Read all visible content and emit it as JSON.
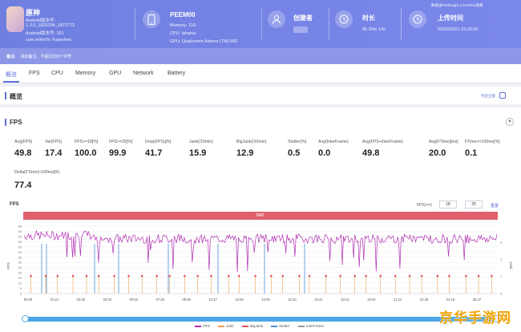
{
  "app": {
    "name": "原神",
    "lines": [
      "Android版本号:",
      "1.3.0_1825294_1872772",
      "Android版本号: 151",
      "com.miHoYo.Yuanshen"
    ]
  },
  "device": {
    "name": "PEEM00",
    "memory": "Memory: 11G",
    "cpu": "CPU: lahaina",
    "gpu": "GPU: Qualcomm Adreno (TM) 660"
  },
  "creator": {
    "title": "创建者"
  },
  "duration": {
    "title": "时长",
    "value": "0h 30m 14s"
  },
  "upload": {
    "title": "上传时间",
    "value": "03/03/2021 15:33:02",
    "top_note": "数据由PerfDog(5.1.210204)收集"
  },
  "note_bar": {
    "label": "备注:",
    "text": "添加备注，不超过255个字符"
  },
  "tabs": [
    "概览",
    "FPS",
    "CPU",
    "Memory",
    "GPU",
    "Network",
    "Battery"
  ],
  "overview": {
    "title": "概览",
    "export": "导出全部"
  },
  "fps_section": {
    "title": "FPS",
    "collapse": "▾",
    "metrics": [
      {
        "label": "Avg(FPS)",
        "value": "49.8"
      },
      {
        "label": "Var(FPS)",
        "value": "17.4"
      },
      {
        "label": "FPS>=18[%]",
        "value": "100.0"
      },
      {
        "label": "FPS>=25[%]",
        "value": "99.9"
      },
      {
        "label": "Drop(FPS)[/h]",
        "value": "41.7"
      },
      {
        "label": "Jank(/10min)",
        "value": "15.9"
      },
      {
        "label": "BigJank(/10min)",
        "value": "12.9"
      },
      {
        "label": "Stutter(%)",
        "value": "0.5"
      },
      {
        "label": "Avg(InterFrame)",
        "value": "0.0"
      },
      {
        "label": "Avg(FPS+InterFrame)",
        "value": "49.8"
      },
      {
        "label": "Avg(FTime)[ms]",
        "value": "20.0"
      },
      {
        "label": "FTime>=100ms[%]",
        "value": "0.1"
      },
      {
        "label": "Delta(FTime)>100ms[/h]",
        "value": "77.4"
      }
    ]
  },
  "chart": {
    "label": "FPS",
    "fps_ctrl_label": "FPS(>=)",
    "fps_min": "18",
    "fps_max": "25",
    "reset": "重置",
    "red_bar_text": "MAT",
    "y_axis_title": "FPS",
    "y_right_title": "Jank",
    "y_ticks": [
      "0",
      "5",
      "10",
      "15",
      "20",
      "25",
      "30",
      "35",
      "40",
      "45",
      "50",
      "55",
      "60",
      "65"
    ],
    "y_right_ticks": [
      "0",
      "1",
      "2",
      "3"
    ],
    "x_ticks": [
      "00:00",
      "01:21",
      "03:02",
      "04:33",
      "06:04",
      "07:35",
      "09:06",
      "10:37",
      "12:08",
      "13:39",
      "15:10",
      "16:41",
      "18:12",
      "19:43",
      "21:14",
      "22:45",
      "24:16",
      "25:47"
    ],
    "legend": [
      "FPS",
      "Jank",
      "BigJank",
      "Stutter",
      "InterFrame"
    ],
    "colors": {
      "fps": "#b02db0",
      "jank": "#f0a050",
      "bigjank": "#e05050",
      "stutter": "#4a90d9",
      "interframe": "#999999"
    }
  },
  "watermark": "京华手游网"
}
